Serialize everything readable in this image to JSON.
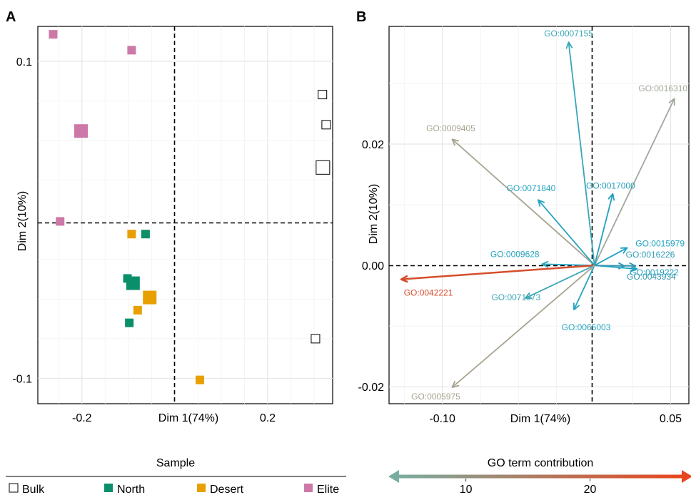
{
  "chart_data": [
    {
      "panel_label": "A",
      "type": "scatter",
      "xlabel": "Dim 1(74%)",
      "ylabel": "Dim 2(10%)",
      "xlim": [
        -0.295,
        0.34
      ],
      "ylim": [
        -0.116,
        0.122
      ],
      "xticks": [
        -0.2,
        0.2
      ],
      "xtick_labels": [
        "-0.2",
        "0.2"
      ],
      "yticks": [
        -0.1,
        0.1
      ],
      "ytick_labels": [
        "-0.1",
        "0.1"
      ],
      "grid": true,
      "legend": {
        "title": "Sample",
        "placement": "bottom-left",
        "entries": [
          {
            "label": "Bulk",
            "fill": "none",
            "stroke": "#000000"
          },
          {
            "label": "North",
            "fill": "#0a8f6a",
            "stroke": "#0a8f6a"
          },
          {
            "label": "Desert",
            "fill": "#e8a000",
            "stroke": "#e8a000"
          },
          {
            "label": "Elite",
            "fill": "#cc79a7",
            "stroke": "#cc79a7"
          }
        ]
      },
      "series": [
        {
          "name": "Bulk",
          "points": [
            {
              "x": 0.318,
              "y": 0.079,
              "size": 12
            },
            {
              "x": 0.326,
              "y": 0.06,
              "size": 12
            },
            {
              "x": 0.319,
              "y": 0.033,
              "size": 19
            },
            {
              "x": 0.303,
              "y": -0.075,
              "size": 12
            }
          ]
        },
        {
          "name": "North",
          "points": [
            {
              "x": -0.063,
              "y": -0.009,
              "size": 12
            },
            {
              "x": -0.102,
              "y": -0.037,
              "size": 12
            },
            {
              "x": -0.09,
              "y": -0.04,
              "size": 19
            },
            {
              "x": -0.098,
              "y": -0.065,
              "size": 12
            }
          ]
        },
        {
          "name": "Desert",
          "points": [
            {
              "x": -0.093,
              "y": -0.009,
              "size": 12
            },
            {
              "x": -0.08,
              "y": -0.057,
              "size": 12
            },
            {
              "x": -0.054,
              "y": -0.049,
              "size": 19
            },
            {
              "x": 0.054,
              "y": -0.101,
              "size": 12
            }
          ]
        },
        {
          "name": "Elite",
          "points": [
            {
              "x": -0.262,
              "y": 0.117,
              "size": 12
            },
            {
              "x": -0.093,
              "y": 0.107,
              "size": 12
            },
            {
              "x": -0.202,
              "y": 0.056,
              "size": 19
            },
            {
              "x": -0.247,
              "y": -0.001,
              "size": 12
            }
          ]
        }
      ]
    },
    {
      "panel_label": "B",
      "type": "biplot-arrows",
      "xlabel": "Dim 1(74%)",
      "ylabel": "Dim 2(10%)",
      "xlim": [
        -0.135,
        0.062
      ],
      "ylim": [
        -0.0228,
        0.0394
      ],
      "xticks": [
        -0.1,
        0.05
      ],
      "xtick_labels": [
        "-0.10",
        "0.05"
      ],
      "yticks": [
        -0.02,
        0.0,
        0.02
      ],
      "ytick_labels": [
        "-0.02",
        "0.00",
        "0.02"
      ],
      "grid": true,
      "legend": {
        "title": "GO term contribution",
        "placement": "bottom-right",
        "tick_values": [
          10,
          20
        ],
        "tick_labels": [
          "10",
          "20"
        ],
        "range": [
          4.5,
          27.5
        ],
        "colors": [
          "#7aada0",
          "#e8451e"
        ]
      },
      "arrows": [
        {
          "label": "GO:0007155",
          "x": -0.017,
          "y": 0.0368,
          "contribution": 12.5
        },
        {
          "label": "GO:0016310",
          "x": 0.0525,
          "y": 0.0275,
          "contribution": 8.5
        },
        {
          "label": "GO:0009405",
          "x": -0.0935,
          "y": 0.0208,
          "contribution": 7.5
        },
        {
          "label": "GO:0017000",
          "x": 0.012,
          "y": 0.0118,
          "contribution": 16.5
        },
        {
          "label": "GO:0071840",
          "x": -0.037,
          "y": 0.0108,
          "contribution": 15.0
        },
        {
          "label": "GO:0015979",
          "x": 0.0215,
          "y": 0.0029,
          "contribution": 15.5
        },
        {
          "label": "GO:0009628",
          "x": -0.0345,
          "y": 0.0002,
          "contribution": 14.5
        },
        {
          "label": "GO:0016226",
          "x": 0.0198,
          "y": -0.0001,
          "contribution": 17.0
        },
        {
          "label": "GO:0019222",
          "x": 0.028,
          "y": -0.0006,
          "contribution": 16.0
        },
        {
          "label": "GO:0042221",
          "x": -0.127,
          "y": -0.0023,
          "contribution": 26.5
        },
        {
          "label": "GO:0043934",
          "x": 0.027,
          "y": -0.0001,
          "contribution": 17.5
        },
        {
          "label": "GO:0071973",
          "x": -0.0455,
          "y": -0.0054,
          "contribution": 12.0
        },
        {
          "label": "GO:0065003",
          "x": -0.0135,
          "y": -0.0073,
          "contribution": 15.0
        },
        {
          "label": "GO:0005975",
          "x": -0.0935,
          "y": -0.0201,
          "contribution": 7.5
        }
      ]
    }
  ]
}
